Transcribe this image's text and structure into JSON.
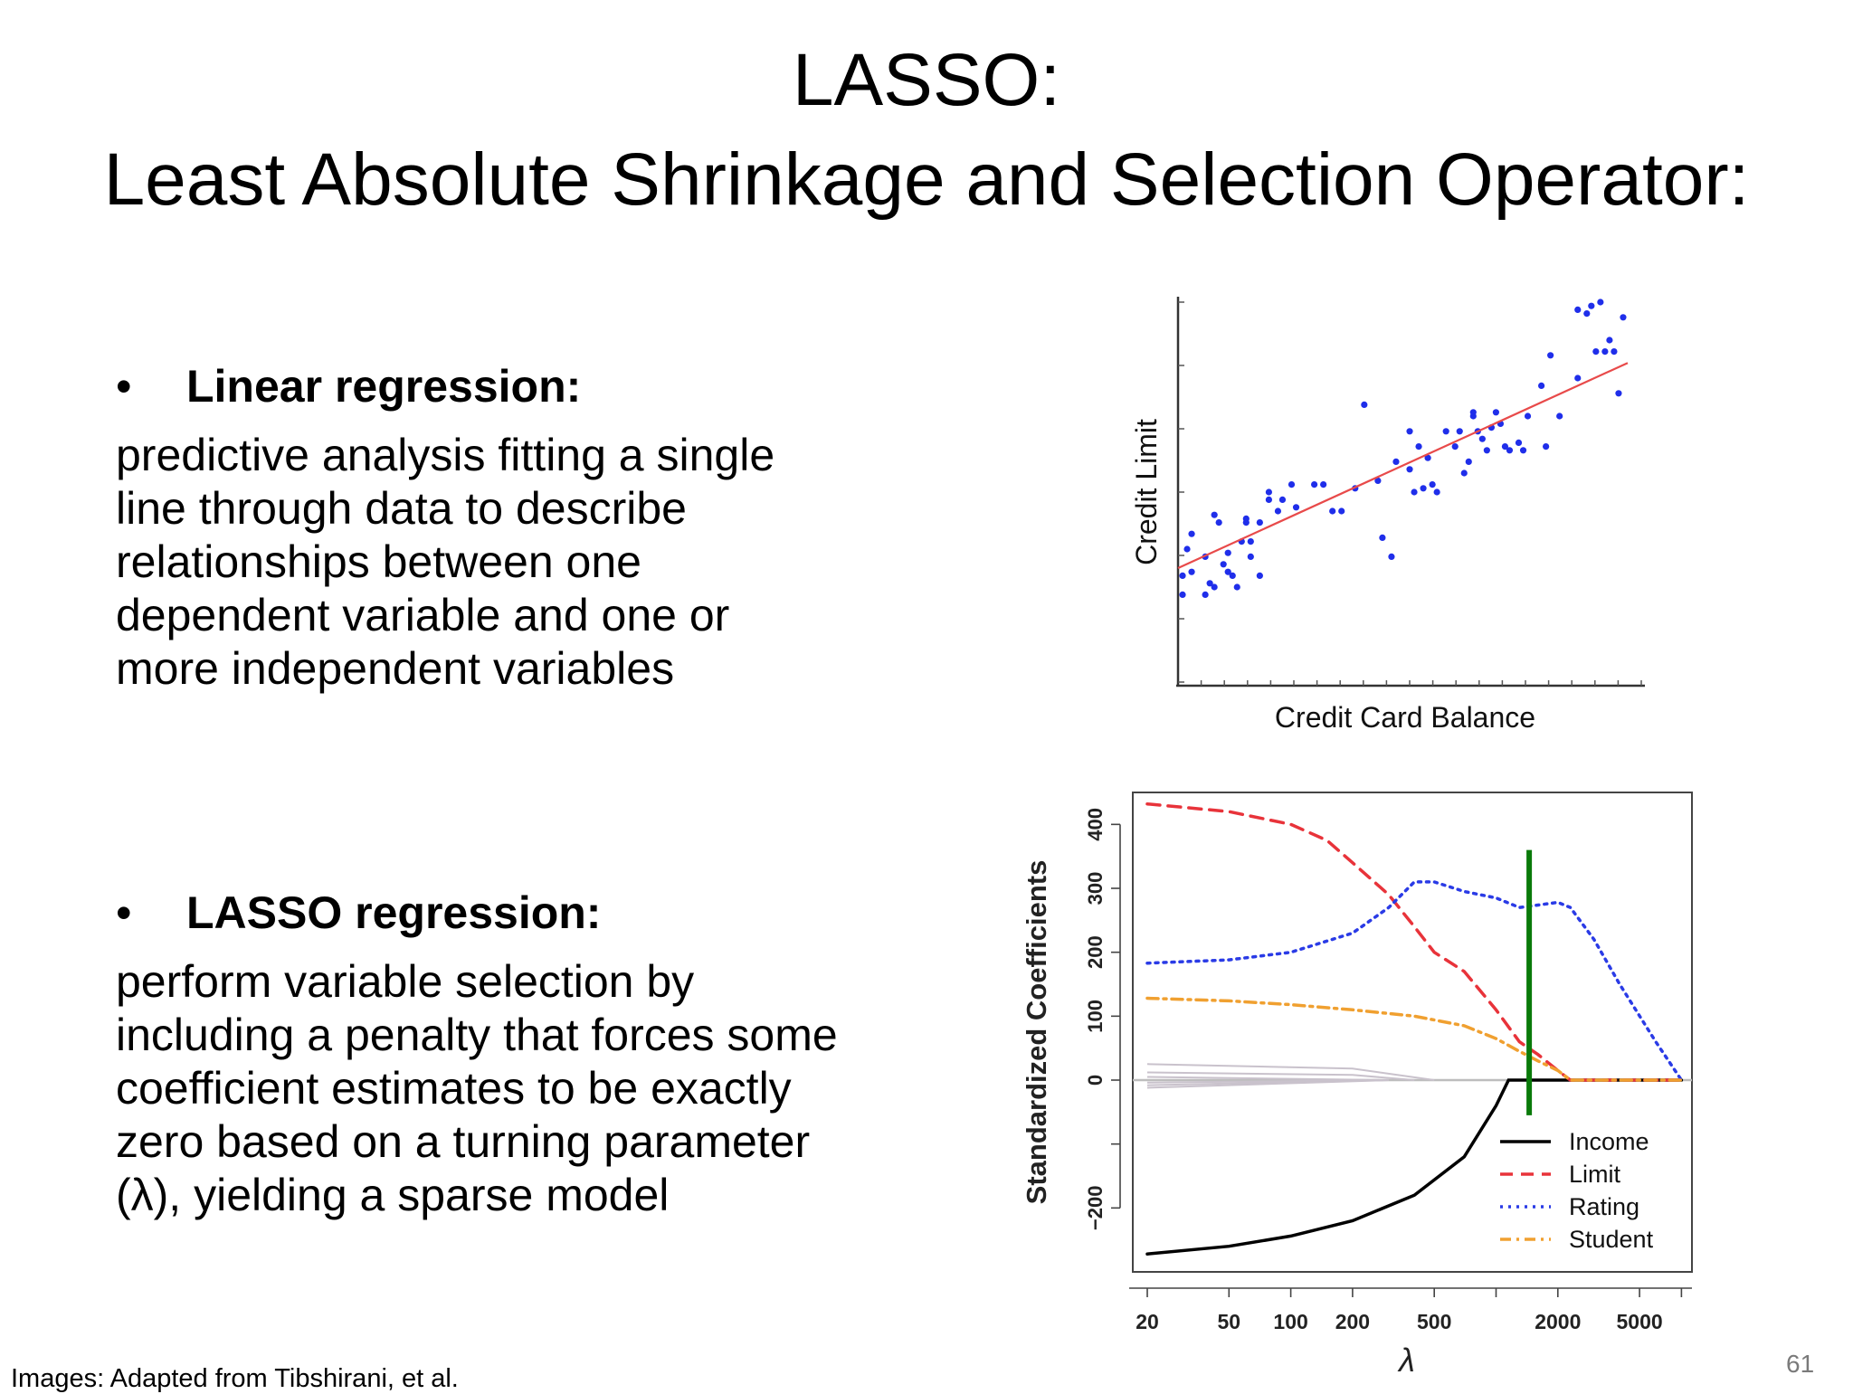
{
  "slide": {
    "title_line1": "LASSO:",
    "title_line2": "Least Absolute Shrinkage and Selection Operator:",
    "bullets": [
      {
        "bullet": "•",
        "heading": "Linear regression:",
        "text_lines": [
          "predictive analysis fitting a single",
          "line through data to describe",
          "relationships between one",
          "dependent variable and one or",
          "more independent variables"
        ]
      },
      {
        "bullet": "•",
        "heading": "LASSO regression:",
        "text_lines": [
          "perform variable selection by",
          "including a penalty that forces some",
          "coefficient estimates to be exactly",
          "zero based on a turning parameter",
          "(λ), yielding a sparse model"
        ]
      }
    ],
    "footnote": "Images:  Adapted from Tibshirani, et al.",
    "page_number": "61"
  },
  "chart_data": [
    {
      "type": "scatter",
      "xlabel": "Credit Card Balance",
      "ylabel": "Credit Limit",
      "xlim": [
        0,
        100
      ],
      "ylim": [
        0,
        100
      ],
      "point_color": "#1f2eea",
      "line_color": "#e84a4a",
      "fit_line": {
        "x": [
          0,
          99
        ],
        "y": [
          30,
          84
        ]
      },
      "points": [
        [
          1,
          23
        ],
        [
          1,
          28
        ],
        [
          2,
          35
        ],
        [
          3,
          29
        ],
        [
          3,
          39
        ],
        [
          6,
          23
        ],
        [
          6,
          33
        ],
        [
          7,
          26
        ],
        [
          8,
          25
        ],
        [
          8,
          44
        ],
        [
          9,
          42
        ],
        [
          10,
          31
        ],
        [
          11,
          34
        ],
        [
          11,
          29
        ],
        [
          12,
          28
        ],
        [
          13,
          25
        ],
        [
          14,
          37
        ],
        [
          15,
          43
        ],
        [
          15,
          42
        ],
        [
          16,
          37
        ],
        [
          16,
          33
        ],
        [
          18,
          28
        ],
        [
          18,
          42
        ],
        [
          20,
          48
        ],
        [
          20,
          50
        ],
        [
          22,
          45
        ],
        [
          23,
          48
        ],
        [
          25,
          52
        ],
        [
          26,
          46
        ],
        [
          30,
          52
        ],
        [
          32,
          52
        ],
        [
          34,
          45
        ],
        [
          36,
          45
        ],
        [
          39,
          51
        ],
        [
          41,
          73
        ],
        [
          44,
          53
        ],
        [
          45,
          38
        ],
        [
          47,
          33
        ],
        [
          48,
          58
        ],
        [
          51,
          56
        ],
        [
          51,
          66
        ],
        [
          52,
          50
        ],
        [
          53,
          62
        ],
        [
          54,
          51
        ],
        [
          55,
          59
        ],
        [
          56,
          52
        ],
        [
          57,
          50
        ],
        [
          59,
          66
        ],
        [
          61,
          62
        ],
        [
          62,
          66
        ],
        [
          63,
          55
        ],
        [
          64,
          58
        ],
        [
          65,
          70
        ],
        [
          65,
          71
        ],
        [
          66,
          66
        ],
        [
          67,
          64
        ],
        [
          68,
          61
        ],
        [
          69,
          67
        ],
        [
          70,
          71
        ],
        [
          71,
          68
        ],
        [
          72,
          62
        ],
        [
          73,
          61
        ],
        [
          75,
          63
        ],
        [
          76,
          61
        ],
        [
          77,
          70
        ],
        [
          80,
          78
        ],
        [
          81,
          62
        ],
        [
          82,
          86
        ],
        [
          84,
          70
        ],
        [
          88,
          80
        ],
        [
          88,
          98
        ],
        [
          90,
          97
        ],
        [
          91,
          99
        ],
        [
          92,
          87
        ],
        [
          93,
          100
        ],
        [
          94,
          87
        ],
        [
          95,
          90
        ],
        [
          96,
          87
        ],
        [
          97,
          76
        ],
        [
          98,
          96
        ]
      ]
    },
    {
      "type": "line",
      "xlabel": "λ",
      "ylabel": "Standardized Coefficients",
      "xscale": "log",
      "xlim": [
        17,
        9000
      ],
      "ylim": [
        -300,
        450
      ],
      "xticks": [
        20,
        50,
        100,
        200,
        500,
        2000,
        5000
      ],
      "yticks": [
        400,
        300,
        200,
        100,
        0,
        -200
      ],
      "ytick_labels": [
        "400",
        "300",
        "200",
        "100",
        "0",
        "−200"
      ],
      "legend_position": "bottom-right",
      "vertical_marker": {
        "x": 1450,
        "y_range": [
          -55,
          360
        ],
        "color": "#0a7a0a"
      },
      "series": [
        {
          "name": "Income",
          "color": "#000000",
          "dash": "solid",
          "x": [
            20,
            50,
            100,
            200,
            400,
            700,
            1000,
            1150,
            1300,
            2000,
            8000
          ],
          "y": [
            -272,
            -260,
            -244,
            -220,
            -180,
            -120,
            -40,
            0,
            0,
            0,
            0
          ]
        },
        {
          "name": "Limit",
          "color": "#e8333a",
          "dash": "dashed",
          "x": [
            20,
            50,
            100,
            150,
            200,
            300,
            400,
            500,
            700,
            1000,
            1300,
            1600,
            2000,
            2300,
            8000
          ],
          "y": [
            432,
            420,
            400,
            375,
            340,
            290,
            240,
            200,
            170,
            110,
            60,
            40,
            15,
            0,
            0
          ]
        },
        {
          "name": "Rating",
          "color": "#2a3be6",
          "dash": "dotted",
          "x": [
            20,
            50,
            100,
            200,
            300,
            400,
            500,
            700,
            1000,
            1300,
            1700,
            2000,
            2300,
            3000,
            4000,
            6000,
            8000
          ],
          "y": [
            183,
            188,
            200,
            230,
            270,
            310,
            310,
            295,
            285,
            270,
            275,
            278,
            270,
            220,
            150,
            60,
            0
          ]
        },
        {
          "name": "Student",
          "color": "#f0a030",
          "dash": "dashdot",
          "x": [
            20,
            50,
            100,
            200,
            400,
            700,
            1000,
            1300,
            1600,
            2000,
            2300,
            8000
          ],
          "y": [
            128,
            124,
            118,
            110,
            100,
            85,
            65,
            45,
            30,
            15,
            0,
            0
          ]
        }
      ],
      "other_series_color": "#c9c2cc",
      "other_series": [
        {
          "x": [
            20,
            200,
            500
          ],
          "y": [
            25,
            18,
            0
          ]
        },
        {
          "x": [
            20,
            200,
            400
          ],
          "y": [
            12,
            8,
            0
          ]
        },
        {
          "x": [
            20,
            300
          ],
          "y": [
            5,
            0
          ]
        },
        {
          "x": [
            20,
            300
          ],
          "y": [
            -4,
            0
          ]
        },
        {
          "x": [
            20,
            300
          ],
          "y": [
            -8,
            0
          ]
        },
        {
          "x": [
            20,
            300
          ],
          "y": [
            -12,
            0
          ]
        }
      ]
    }
  ]
}
